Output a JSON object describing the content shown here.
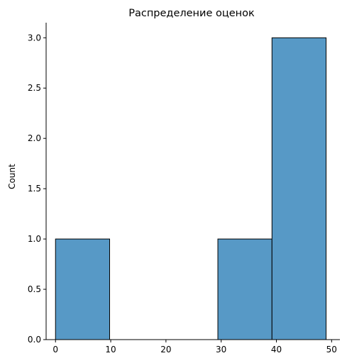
{
  "chart_data": {
    "type": "bar",
    "title": "Распределение оценок",
    "xlabel": "",
    "ylabel": "Count",
    "bins": [
      {
        "x0": 0.0,
        "x1": 9.8,
        "count": 1
      },
      {
        "x0": 9.8,
        "x1": 19.6,
        "count": 0
      },
      {
        "x0": 19.6,
        "x1": 29.4,
        "count": 0
      },
      {
        "x0": 29.4,
        "x1": 39.2,
        "count": 1
      },
      {
        "x0": 39.2,
        "x1": 49.0,
        "count": 3
      }
    ],
    "xlim": [
      -1.7,
      51.5
    ],
    "ylim": [
      0,
      3.15
    ],
    "xticks": [
      "0",
      "10",
      "20",
      "30",
      "40",
      "50"
    ],
    "yticks": [
      "0.0",
      "0.5",
      "1.0",
      "1.5",
      "2.0",
      "2.5",
      "3.0"
    ],
    "bar_color": "#5799c6",
    "edge_color": "#000000",
    "grid": false
  }
}
